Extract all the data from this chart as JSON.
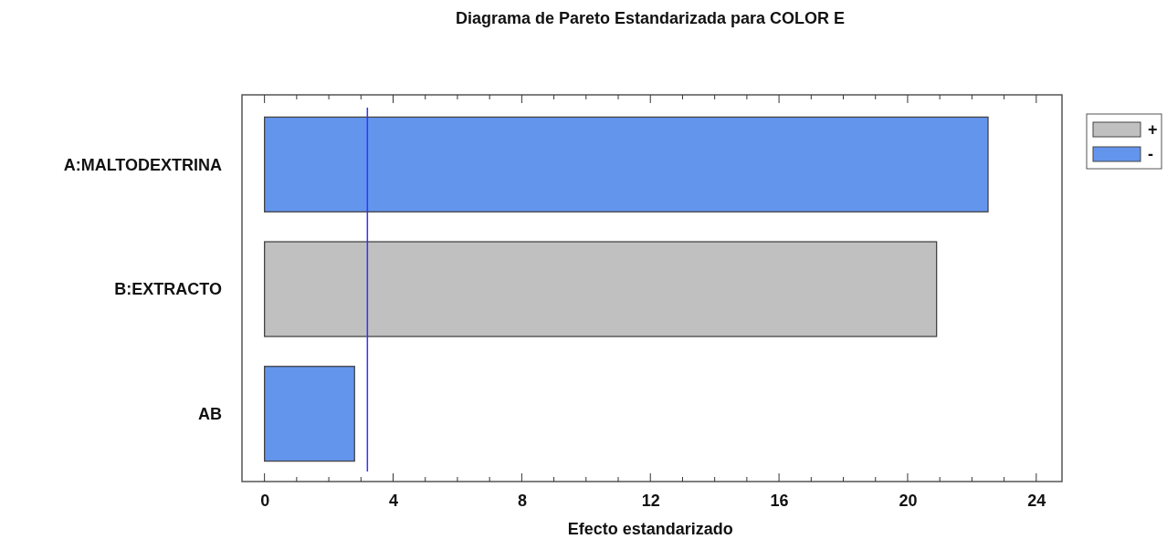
{
  "chart_data": {
    "type": "bar",
    "orientation": "horizontal",
    "title": "Diagrama de Pareto Estandarizada para COLOR E",
    "xlabel": "Efecto estandarizado",
    "categories": [
      "A:MALTODEXTRINA",
      "B:EXTRACTO",
      "AB"
    ],
    "series": [
      {
        "name": "+",
        "color": "#c0c0c0",
        "values": [
          null,
          20.9,
          null
        ]
      },
      {
        "name": "-",
        "color": "#6495ed",
        "values": [
          22.5,
          null,
          2.8
        ]
      }
    ],
    "xlim": [
      -0.7,
      24.8
    ],
    "xticks": [
      0,
      {
        "value": 1,
        "label": null
      },
      {
        "value": 2,
        "label": null
      },
      {
        "value": 3,
        "label": null
      },
      4,
      {
        "value": 5,
        "label": null
      },
      {
        "value": 6,
        "label": null
      },
      {
        "value": 7,
        "label": null
      },
      8,
      {
        "value": 9,
        "label": null
      },
      {
        "value": 10,
        "label": null
      },
      {
        "value": 11,
        "label": null
      },
      12,
      {
        "value": 13,
        "label": null
      },
      {
        "value": 14,
        "label": null
      },
      {
        "value": 15,
        "label": null
      },
      16,
      {
        "value": 17,
        "label": null
      },
      {
        "value": 18,
        "label": null
      },
      {
        "value": 19,
        "label": null
      },
      20,
      {
        "value": 21,
        "label": null
      },
      {
        "value": 22,
        "label": null
      },
      {
        "value": 23,
        "label": null
      },
      24
    ],
    "ref_lines": [
      {
        "axis": "x",
        "value": 3.2,
        "color": "#3333ff"
      }
    ],
    "legend": "top right",
    "grid": false
  }
}
